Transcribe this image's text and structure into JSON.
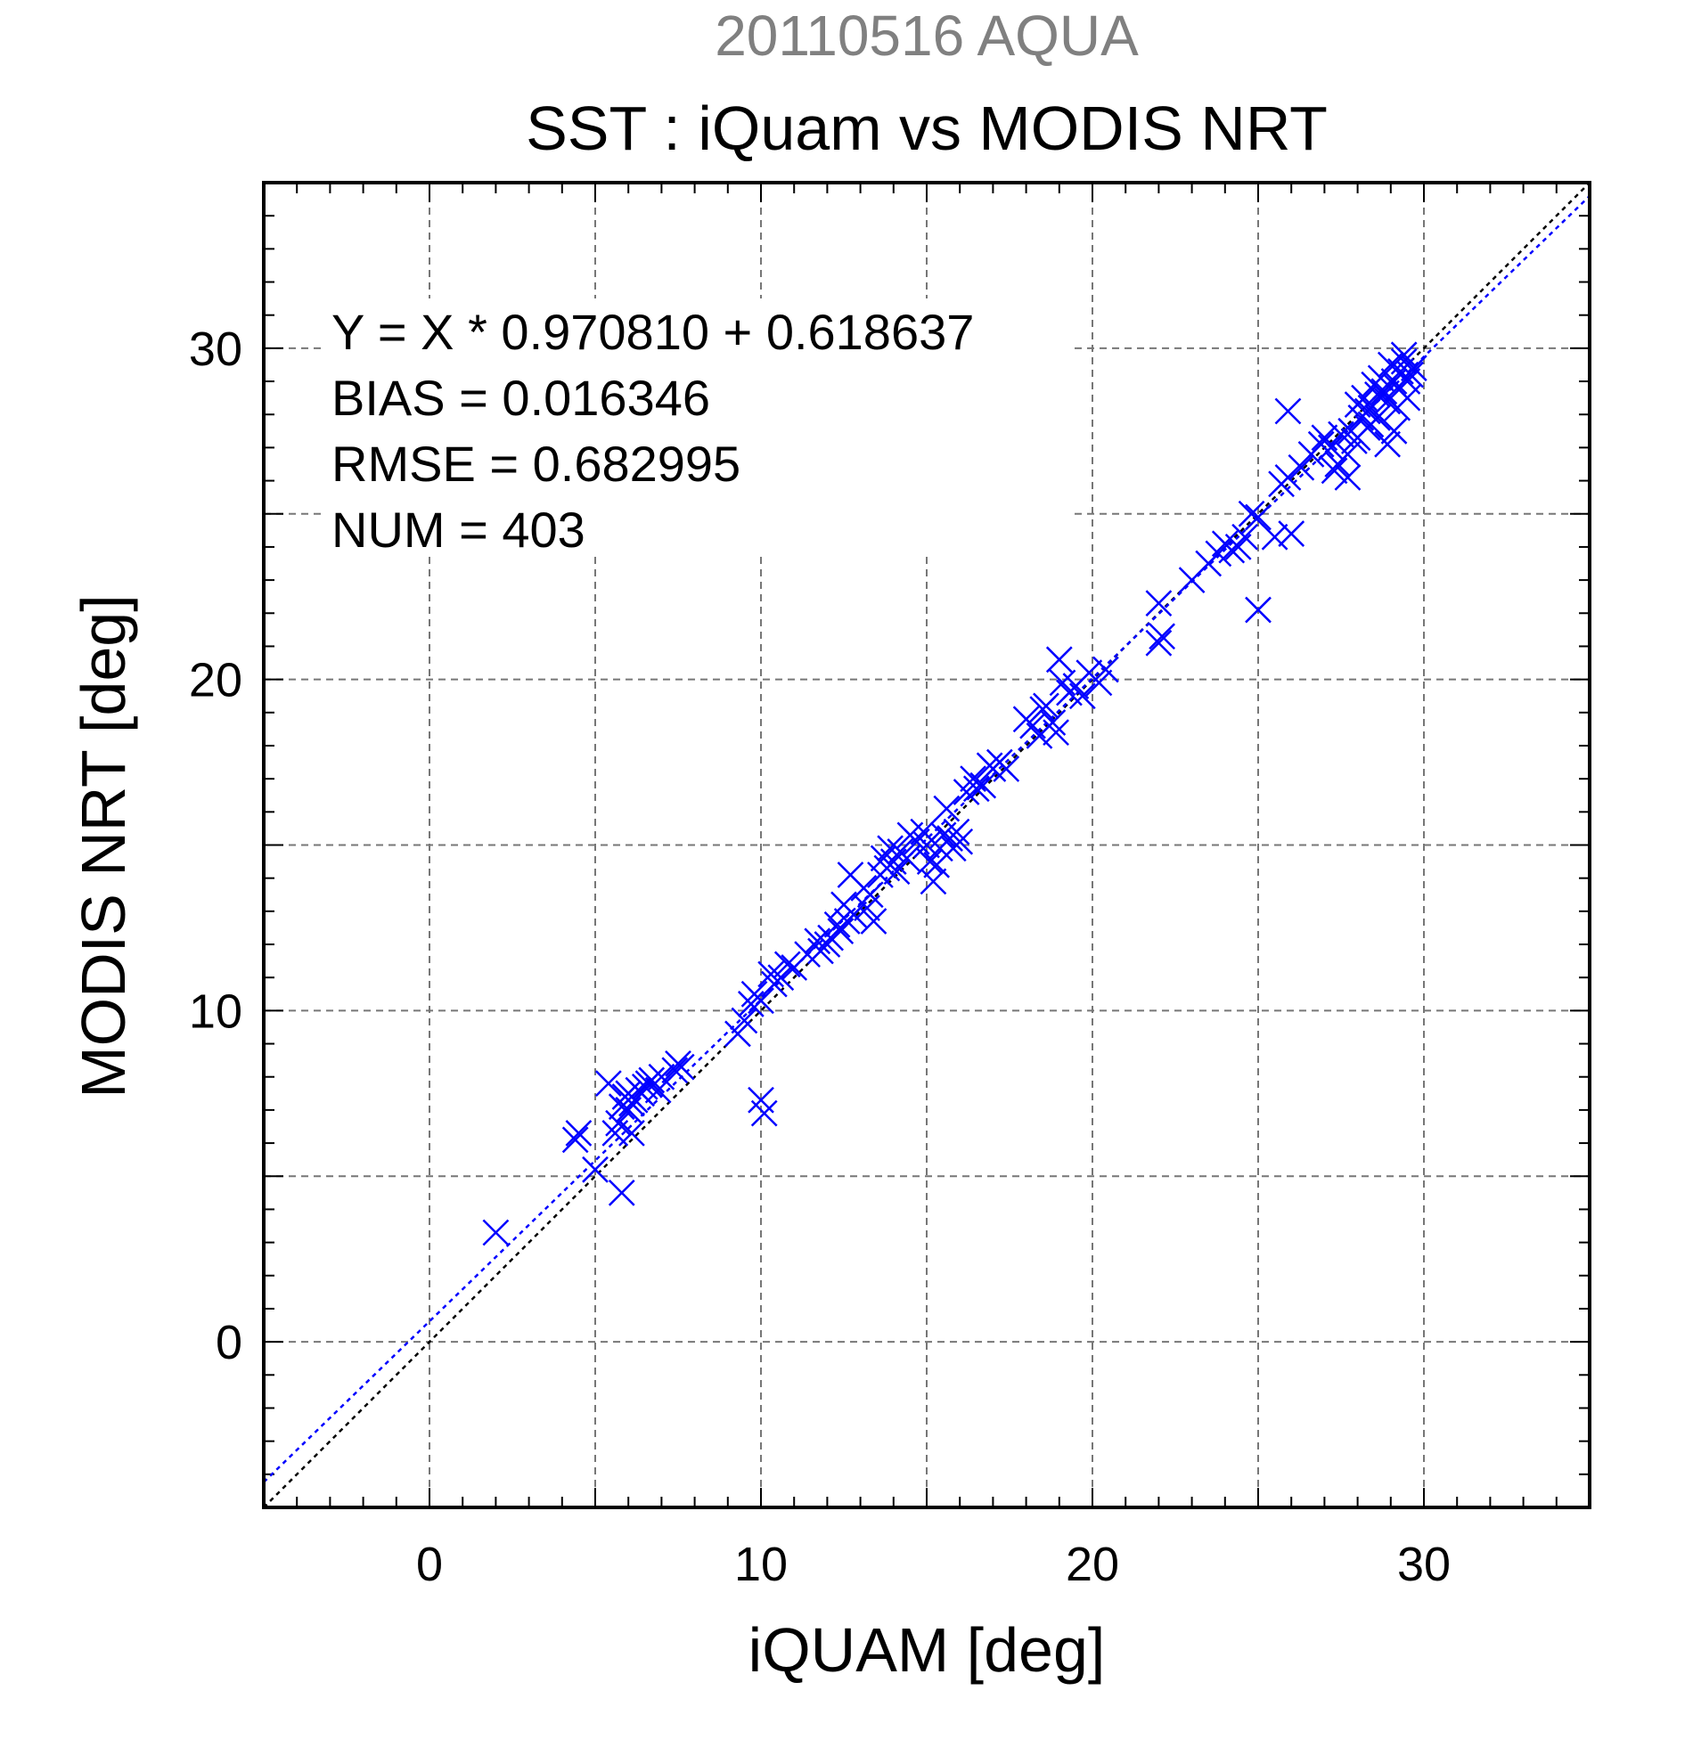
{
  "chart_data": {
    "type": "scatter",
    "supertitle": "20110516 AQUA",
    "title": "SST : iQuam vs MODIS NRT",
    "xlabel": "iQUAM [deg]",
    "ylabel": "MODIS NRT [deg]",
    "xlim": [
      -5,
      35
    ],
    "ylim": [
      -5,
      35
    ],
    "xticks": [
      0,
      10,
      20,
      30
    ],
    "yticks": [
      0,
      10,
      20,
      30
    ],
    "xtick_labels": [
      "0",
      "10",
      "20",
      "30"
    ],
    "ytick_labels": [
      "0",
      "10",
      "20",
      "30"
    ],
    "grid": true,
    "grid_step": 5,
    "stats_text": [
      "Y = X * 0.970810 + 0.618637",
      "BIAS = 0.016346",
      "RMSE = 0.682995",
      "NUM = 403"
    ],
    "fit": {
      "slope": 0.97081,
      "intercept": 0.618637
    },
    "colors": {
      "points": "#0000ff",
      "fit_line": "#0000ff",
      "identity_line": "#000000",
      "grid": "#777777",
      "supertitle": "#808080"
    },
    "series": [
      {
        "marker": "x",
        "x": [
          2.0,
          4.4,
          4.5,
          5.0,
          5.4,
          5.6,
          5.7,
          5.8,
          5.9,
          6.0,
          6.0,
          6.1,
          6.2,
          6.3,
          6.4,
          6.5,
          6.6,
          6.7,
          6.9,
          7.0,
          7.4,
          7.5,
          7.6,
          5.8,
          6.1,
          9.3,
          9.5,
          9.7,
          9.8,
          10.0,
          10.0,
          10.1,
          10.3,
          10.4,
          10.6,
          10.8,
          11.0,
          11.4,
          11.7,
          11.8,
          12.0,
          12.1,
          12.3,
          12.4,
          12.5,
          12.6,
          12.7,
          12.8,
          13.1,
          13.2,
          13.3,
          13.4,
          13.6,
          13.7,
          13.8,
          13.9,
          14.0,
          14.1,
          14.2,
          14.4,
          14.5,
          14.7,
          14.9,
          15.0,
          15.1,
          15.2,
          15.3,
          15.4,
          15.5,
          15.6,
          15.7,
          15.8,
          15.9,
          16.0,
          16.2,
          16.4,
          16.5,
          16.7,
          16.9,
          17.0,
          17.2,
          17.4,
          18.0,
          18.2,
          18.4,
          18.5,
          18.6,
          18.8,
          18.9,
          19.0,
          19.1,
          19.3,
          19.5,
          19.7,
          19.9,
          20.2,
          20.4,
          22.0,
          22.1,
          22.0,
          23.0,
          23.5,
          23.8,
          24.0,
          24.2,
          24.4,
          24.6,
          24.8,
          25.0,
          25.0,
          25.5,
          25.7,
          25.9,
          26.0,
          26.3,
          26.6,
          26.9,
          27.0,
          27.2,
          27.4,
          27.5,
          27.7,
          27.8,
          27.9,
          28.0,
          28.1,
          28.2,
          28.3,
          28.4,
          28.5,
          28.6,
          28.7,
          28.8,
          28.9,
          29.0,
          29.1,
          29.2,
          29.3,
          29.4,
          29.5,
          29.6,
          27.3,
          27.7,
          28.0,
          28.3,
          28.6,
          28.9,
          29.2,
          29.5,
          25.9,
          28.4,
          28.8,
          29.1,
          29.4,
          29.7
        ],
        "y": [
          3.3,
          6.1,
          6.3,
          5.2,
          7.8,
          6.3,
          6.6,
          7.1,
          7.4,
          7.0,
          7.5,
          7.2,
          7.3,
          7.6,
          7.5,
          7.7,
          7.8,
          7.9,
          7.6,
          8.0,
          8.2,
          8.4,
          8.3,
          4.5,
          6.3,
          9.3,
          9.7,
          10.2,
          10.5,
          10.3,
          7.3,
          6.9,
          11.1,
          10.8,
          11.0,
          11.4,
          11.3,
          11.7,
          12.1,
          11.8,
          12.0,
          12.2,
          12.6,
          12.4,
          13.2,
          12.7,
          14.1,
          12.9,
          13.7,
          13.1,
          13.5,
          12.7,
          14.1,
          14.6,
          14.3,
          14.9,
          14.5,
          14.2,
          14.8,
          14.6,
          15.3,
          15.1,
          15.4,
          15.0,
          14.5,
          13.9,
          14.4,
          14.9,
          15.3,
          16.1,
          15.2,
          14.9,
          15.4,
          15.1,
          16.6,
          17.0,
          16.7,
          16.8,
          17.4,
          17.3,
          17.5,
          17.3,
          18.8,
          18.6,
          18.3,
          19.1,
          19.2,
          18.7,
          18.4,
          20.6,
          19.9,
          19.6,
          19.8,
          19.5,
          20.2,
          19.9,
          20.3,
          21.1,
          21.3,
          22.3,
          23.0,
          23.5,
          23.8,
          24.1,
          23.9,
          24.0,
          24.3,
          25.0,
          24.9,
          22.1,
          24.3,
          25.9,
          26.1,
          24.4,
          26.4,
          26.8,
          27.1,
          27.3,
          27.0,
          26.5,
          27.4,
          26.8,
          27.5,
          27.2,
          28.3,
          27.9,
          28.5,
          28.1,
          27.7,
          28.9,
          28.6,
          29.1,
          28.7,
          28.4,
          29.5,
          29.0,
          28.8,
          29.3,
          29.6,
          29.0,
          29.2,
          26.3,
          26.1,
          27.3,
          27.6,
          27.9,
          27.1,
          28.2,
          28.5,
          28.1,
          28.2,
          28.6,
          27.5,
          29.8,
          29.4
        ]
      }
    ]
  }
}
